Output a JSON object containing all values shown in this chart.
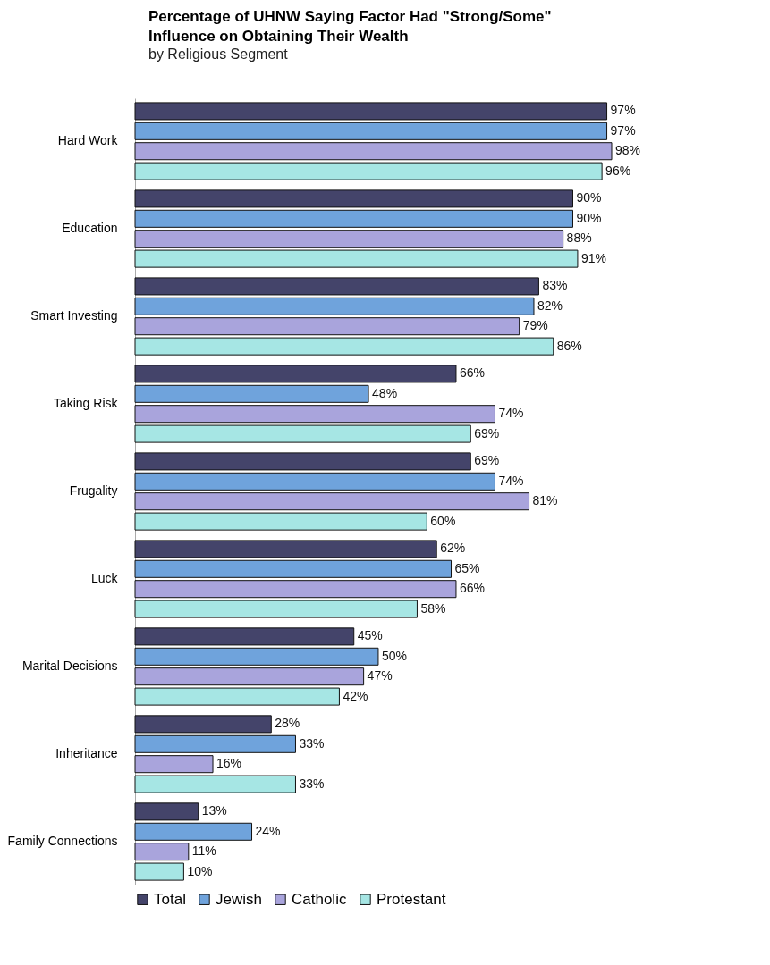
{
  "chart_data": {
    "type": "bar",
    "orientation": "horizontal",
    "title": "Percentage of UHNW Saying Factor Had \"Strong/Some\" Influence on Obtaining Their Wealth",
    "subtitle": "by Religious Segment",
    "categories": [
      "Hard Work",
      "Education",
      "Smart Investing",
      "Taking Risk",
      "Frugality",
      "Luck",
      "Marital Decisions",
      "Inheritance",
      "Family Connections"
    ],
    "legend": "bottom",
    "grid": false,
    "series": [
      {
        "name": "Total",
        "color": "#44446a",
        "values": [
          97,
          90,
          83,
          66,
          69,
          62,
          45,
          28,
          13
        ],
        "value_labels": [
          "97%",
          "90%",
          "83%",
          "66%",
          "69%",
          "62%",
          "45%",
          "28%",
          "13%"
        ]
      },
      {
        "name": "Jewish",
        "color": "#6fa3dc",
        "values": [
          97,
          90,
          82,
          48,
          74,
          65,
          50,
          33,
          24
        ],
        "value_labels": [
          "97%",
          "90%",
          "82%",
          "48%",
          "74%",
          "65%",
          "50%",
          "33%",
          "24%"
        ]
      },
      {
        "name": "Catholic",
        "color": "#a9a4dc",
        "values": [
          98,
          88,
          79,
          74,
          81,
          66,
          47,
          16,
          11
        ],
        "value_labels": [
          "98%",
          "88%",
          "79%",
          "74%",
          "81%",
          "66%",
          "47%",
          "16%",
          "11%"
        ]
      },
      {
        "name": "Protestant",
        "color": "#a6e6e4",
        "values": [
          96,
          91,
          86,
          69,
          60,
          58,
          42,
          33,
          10
        ],
        "value_labels": [
          "96%",
          "91%",
          "86%",
          "69%",
          "60%",
          "58%",
          "42%",
          "33%",
          "10%"
        ]
      }
    ]
  }
}
